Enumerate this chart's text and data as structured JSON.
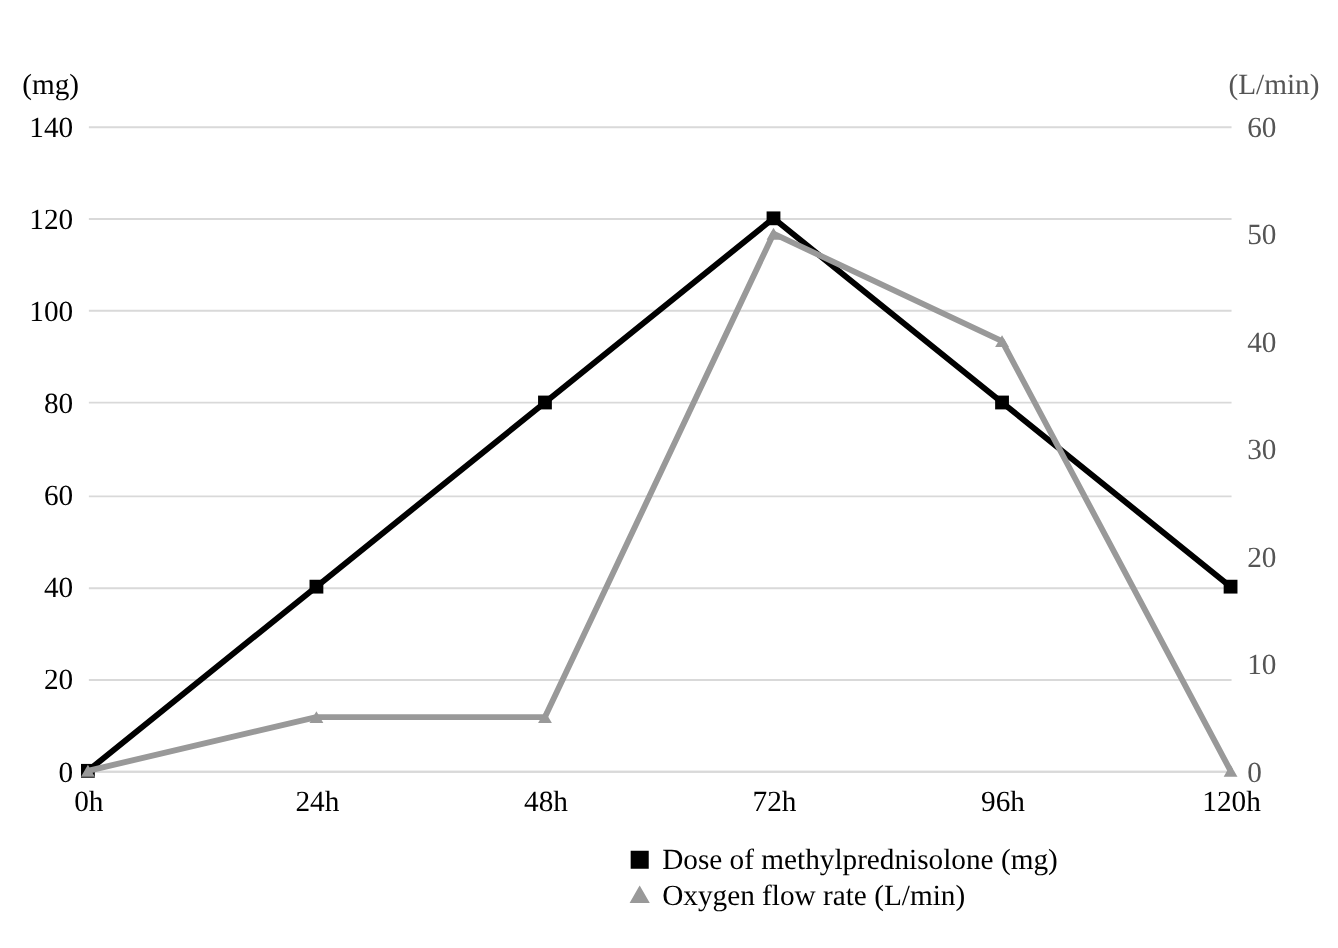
{
  "chart_data": {
    "type": "line",
    "categories": [
      "0h",
      "24h",
      "48h",
      "72h",
      "96h",
      "120h"
    ],
    "ylabel": "(mg)",
    "y2label": "(L/min)",
    "ylim": [
      0,
      140
    ],
    "yticks": [
      0,
      20,
      40,
      60,
      80,
      100,
      120,
      140
    ],
    "y2lim": [
      0,
      60
    ],
    "y2ticks": [
      0,
      10,
      20,
      30,
      40,
      50,
      60
    ],
    "grid": "y",
    "legend": "bottom right",
    "series": [
      {
        "name": "Dose of methylprednisolone (mg)",
        "color": "#000000",
        "marker": "square",
        "values": [
          0,
          40,
          80,
          120,
          80,
          40
        ]
      },
      {
        "name": "Oxygen flow rate (L/min)",
        "color": "#999999",
        "marker": "triangle",
        "axis": "y2",
        "values": [
          0,
          5,
          5,
          50,
          40,
          0
        ]
      }
    ]
  }
}
